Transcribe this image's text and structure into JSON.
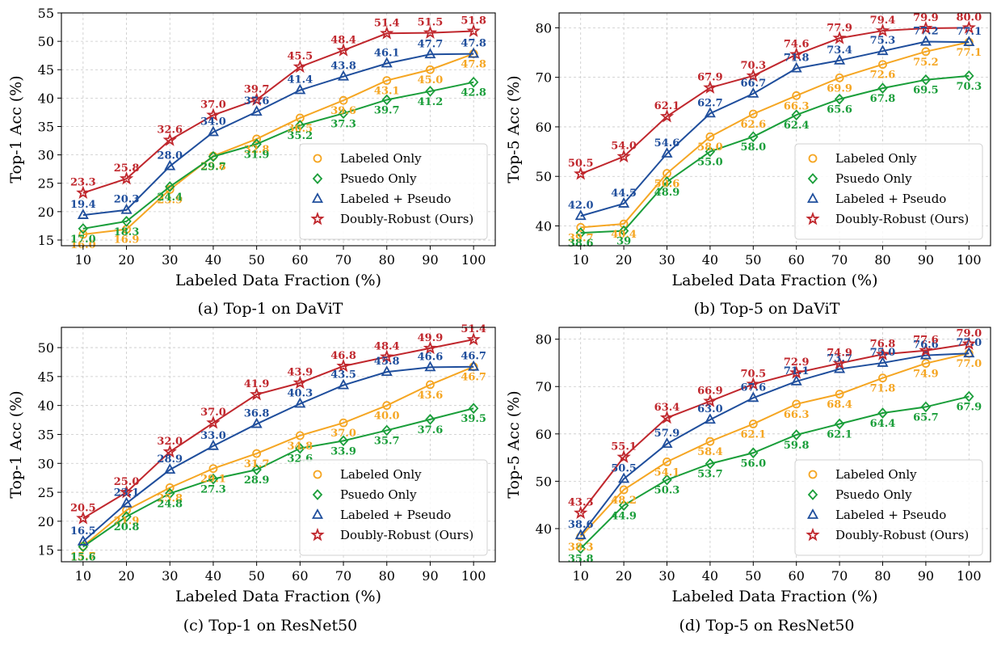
{
  "chart_data": [
    {
      "type": "line",
      "caption": "(a) Top-1 on DaViT",
      "xlabel": "Labeled Data Fraction (%)",
      "ylabel": "Top-1 Acc (%)",
      "x": [
        10,
        20,
        30,
        40,
        50,
        60,
        70,
        80,
        90,
        100
      ],
      "xticks": [
        "10",
        "20",
        "30",
        "40",
        "50",
        "60",
        "70",
        "80",
        "90",
        "100"
      ],
      "ylim": [
        14,
        55
      ],
      "yticks": [
        15,
        20,
        25,
        30,
        35,
        40,
        45,
        50,
        55
      ],
      "grid": true,
      "legend_position": "lower-right",
      "series": [
        {
          "name": "Labeled Only",
          "color": "#f5a623",
          "marker": "circle",
          "values": [
            16.0,
            16.9,
            23.9,
            29.8,
            32.8,
            36.5,
            39.6,
            43.1,
            45.0,
            47.8
          ],
          "labels": [
            "16.0",
            "16.9",
            "23.9",
            "29.8",
            "32.8",
            "36.5",
            "39.6",
            "43.1",
            "45.0",
            "47.8"
          ]
        },
        {
          "name": "Psuedo Only",
          "color": "#1a9e3a",
          "marker": "diamond",
          "values": [
            17.0,
            18.3,
            24.4,
            29.7,
            31.9,
            35.2,
            37.3,
            39.7,
            41.2,
            42.8
          ],
          "labels": [
            "17.0",
            "18.3",
            "24.4",
            "29.7",
            "31.9",
            "35.2",
            "37.3",
            "39.7",
            "41.2",
            "42.8"
          ]
        },
        {
          "name": "Labeled + Pseudo",
          "color": "#1f4e9c",
          "marker": "triangle",
          "values": [
            19.4,
            20.3,
            28.0,
            34.0,
            37.6,
            41.4,
            43.8,
            46.1,
            47.7,
            47.8
          ],
          "labels": [
            "19.4",
            "20.3",
            "28.0",
            "34.0",
            "37.6",
            "41.4",
            "43.8",
            "46.1",
            "47.7",
            "47.8"
          ]
        },
        {
          "name": "Doubly-Robust (Ours)",
          "color": "#c0272d",
          "marker": "star",
          "values": [
            23.3,
            25.8,
            32.6,
            37.0,
            39.7,
            45.5,
            48.4,
            51.4,
            51.5,
            51.8
          ],
          "labels": [
            "23.3",
            "25.8",
            "32.6",
            "37.0",
            "39.7",
            "45.5",
            "48.4",
            "51.4",
            "51.5",
            "51.8"
          ]
        }
      ]
    },
    {
      "type": "line",
      "caption": "(b) Top-5 on DaViT",
      "xlabel": "Labeled Data Fraction (%)",
      "ylabel": "Top-5 Acc (%)",
      "x": [
        10,
        20,
        30,
        40,
        50,
        60,
        70,
        80,
        90,
        100
      ],
      "xticks": [
        "10",
        "20",
        "30",
        "40",
        "50",
        "60",
        "70",
        "80",
        "90",
        "100"
      ],
      "ylim": [
        36,
        83
      ],
      "yticks": [
        40,
        50,
        60,
        70,
        80
      ],
      "grid": true,
      "legend_position": "lower-right",
      "series": [
        {
          "name": "Labeled Only",
          "color": "#f5a623",
          "marker": "circle",
          "values": [
            39.7,
            40.4,
            50.6,
            58.0,
            62.6,
            66.3,
            69.9,
            72.6,
            75.2,
            77.1
          ],
          "labels": [
            "39.7",
            "40.4",
            "50.6",
            "58.0",
            "62.6",
            "66.3",
            "69.9",
            "72.6",
            "75.2",
            "77.1"
          ]
        },
        {
          "name": "Psuedo Only",
          "color": "#1a9e3a",
          "marker": "diamond",
          "values": [
            38.6,
            39.0,
            48.9,
            55.0,
            58.0,
            62.4,
            65.6,
            67.8,
            69.5,
            70.3
          ],
          "labels": [
            "38.6",
            "39",
            "48.9",
            "55.0",
            "58.0",
            "62.4",
            "65.6",
            "67.8",
            "69.5",
            "70.3"
          ]
        },
        {
          "name": "Labeled + Pseudo",
          "color": "#1f4e9c",
          "marker": "triangle",
          "values": [
            42.0,
            44.5,
            54.6,
            62.7,
            66.7,
            71.8,
            73.4,
            75.3,
            77.2,
            77.1
          ],
          "labels": [
            "42.0",
            "44.5",
            "54.6",
            "62.7",
            "66.7",
            "71.8",
            "73.4",
            "75.3",
            "77.2",
            "77.1"
          ]
        },
        {
          "name": "Doubly-Robust (Ours)",
          "color": "#c0272d",
          "marker": "star",
          "values": [
            50.5,
            54.0,
            62.1,
            67.9,
            70.3,
            74.6,
            77.9,
            79.4,
            79.9,
            80.0
          ],
          "labels": [
            "50.5",
            "54.0",
            "62.1",
            "67.9",
            "70.3",
            "74.6",
            "77.9",
            "79.4",
            "79.9",
            "80.0"
          ]
        }
      ]
    },
    {
      "type": "line",
      "caption": "(c) Top-1 on ResNet50",
      "xlabel": "Labeled Data Fraction (%)",
      "ylabel": "Top-1 Acc (%)",
      "x": [
        10,
        20,
        30,
        40,
        50,
        60,
        70,
        80,
        90,
        100
      ],
      "xticks": [
        "10",
        "20",
        "30",
        "40",
        "50",
        "60",
        "70",
        "80",
        "90",
        "100"
      ],
      "ylim": [
        13,
        53.5
      ],
      "yticks": [
        15,
        20,
        25,
        30,
        35,
        40,
        45,
        50
      ],
      "grid": true,
      "legend_position": "lower-right",
      "series": [
        {
          "name": "Labeled Only",
          "color": "#f5a623",
          "marker": "circle",
          "values": [
            15.7,
            21.9,
            25.8,
            29.1,
            31.7,
            34.8,
            37.0,
            40.0,
            43.6,
            46.7
          ],
          "labels": [
            "15.7",
            "21.9",
            "25.8",
            "29.1",
            "31.7",
            "34.8",
            "37.0",
            "40.0",
            "43.6",
            "46.7"
          ]
        },
        {
          "name": "Psuedo Only",
          "color": "#1a9e3a",
          "marker": "diamond",
          "values": [
            15.6,
            20.8,
            24.8,
            27.3,
            28.9,
            32.6,
            33.9,
            35.7,
            37.6,
            39.5
          ],
          "labels": [
            "15.6",
            "20.8",
            "24.8",
            "27.3",
            "28.9",
            "32.6",
            "33.9",
            "35.7",
            "37.6",
            "39.5"
          ]
        },
        {
          "name": "Labeled + Pseudo",
          "color": "#1f4e9c",
          "marker": "triangle",
          "values": [
            16.5,
            23.1,
            28.9,
            33.0,
            36.8,
            40.3,
            43.5,
            45.8,
            46.6,
            46.7
          ],
          "labels": [
            "16.5",
            "23.1",
            "28.9",
            "33.0",
            "36.8",
            "40.3",
            "43.5",
            "45.8",
            "46.6",
            "46.7"
          ]
        },
        {
          "name": "Doubly-Robust (Ours)",
          "color": "#c0272d",
          "marker": "star",
          "values": [
            20.5,
            25.0,
            32.0,
            37.0,
            41.9,
            43.9,
            46.8,
            48.4,
            49.9,
            51.4
          ],
          "labels": [
            "20.5",
            "25.0",
            "32.0",
            "37.0",
            "41.9",
            "43.9",
            "46.8",
            "48.4",
            "49.9",
            "51.4"
          ]
        }
      ]
    },
    {
      "type": "line",
      "caption": "(d) Top-5 on ResNet50",
      "xlabel": "Labeled Data Fraction (%)",
      "ylabel": "Top-5 Acc (%)",
      "x": [
        10,
        20,
        30,
        40,
        50,
        60,
        70,
        80,
        90,
        100
      ],
      "xticks": [
        "10",
        "20",
        "30",
        "40",
        "50",
        "60",
        "70",
        "80",
        "90",
        "100"
      ],
      "ylim": [
        33,
        82.5
      ],
      "yticks": [
        40,
        50,
        60,
        70,
        80
      ],
      "grid": true,
      "legend_position": "lower-right",
      "series": [
        {
          "name": "Labeled Only",
          "color": "#f5a623",
          "marker": "circle",
          "values": [
            38.3,
            48.2,
            54.1,
            58.4,
            62.1,
            66.3,
            68.4,
            71.8,
            74.9,
            77.0
          ],
          "labels": [
            "38.3",
            "48.2",
            "54.1",
            "58.4",
            "62.1",
            "66.3",
            "68.4",
            "71.8",
            "74.9",
            "77.0"
          ]
        },
        {
          "name": "Psuedo Only",
          "color": "#1a9e3a",
          "marker": "diamond",
          "values": [
            35.8,
            44.9,
            50.3,
            53.7,
            56.0,
            59.8,
            62.1,
            64.4,
            65.7,
            67.9
          ],
          "labels": [
            "35.8",
            "44.9",
            "50.3",
            "53.7",
            "56.0",
            "59.8",
            "62.1",
            "64.4",
            "65.7",
            "67.9"
          ]
        },
        {
          "name": "Labeled + Pseudo",
          "color": "#1f4e9c",
          "marker": "triangle",
          "values": [
            38.6,
            50.5,
            57.9,
            63.0,
            67.6,
            71.1,
            73.7,
            75.0,
            76.6,
            77.0
          ],
          "labels": [
            "38.6",
            "50.5",
            "57.9",
            "63.0",
            "67.6",
            "71.1",
            "73.7",
            "75.0",
            "76.6",
            "77.0"
          ]
        },
        {
          "name": "Doubly-Robust (Ours)",
          "color": "#c0272d",
          "marker": "star",
          "values": [
            43.3,
            55.1,
            63.4,
            66.9,
            70.5,
            72.9,
            74.9,
            76.8,
            77.6,
            79.0
          ],
          "labels": [
            "43.3",
            "55.1",
            "63.4",
            "66.9",
            "70.5",
            "72.9",
            "74.9",
            "76.8",
            "77.6",
            "79.0"
          ]
        }
      ]
    }
  ]
}
